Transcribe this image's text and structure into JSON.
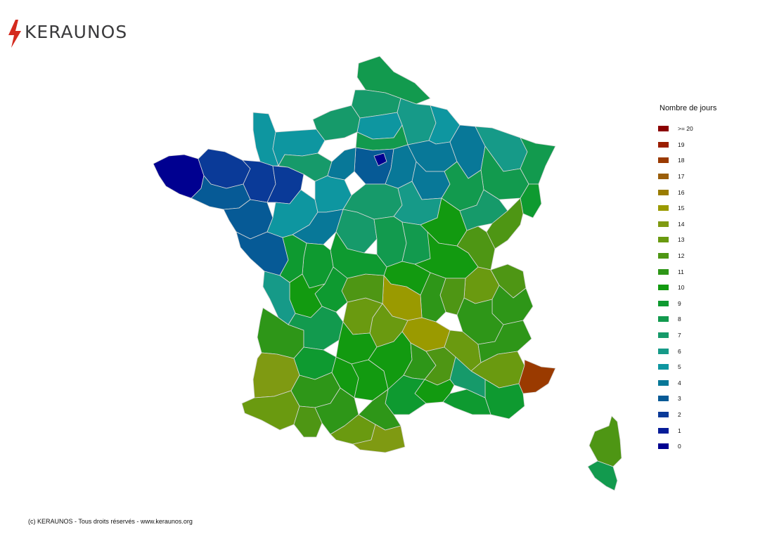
{
  "brand": {
    "name": "KERAUNOS"
  },
  "legend": {
    "title": "Nombre de jours",
    "items": [
      {
        "label": ">= 20",
        "color": "#8b0000"
      },
      {
        "label": "19",
        "color": "#9b1e00"
      },
      {
        "label": "18",
        "color": "#9a3a00"
      },
      {
        "label": "17",
        "color": "#9a5e0a"
      },
      {
        "label": "16",
        "color": "#9a7c00"
      },
      {
        "label": "15",
        "color": "#9a9a00"
      },
      {
        "label": "14",
        "color": "#7f9a12"
      },
      {
        "label": "13",
        "color": "#6a9a10"
      },
      {
        "label": "12",
        "color": "#4e9614"
      },
      {
        "label": "11",
        "color": "#2e9618"
      },
      {
        "label": "10",
        "color": "#129a10"
      },
      {
        "label": "9",
        "color": "#0e9a30"
      },
      {
        "label": "8",
        "color": "#129a4e"
      },
      {
        "label": "7",
        "color": "#169a6a"
      },
      {
        "label": "6",
        "color": "#169a88"
      },
      {
        "label": "5",
        "color": "#0e96a0"
      },
      {
        "label": "4",
        "color": "#087898"
      },
      {
        "label": "3",
        "color": "#065a96"
      },
      {
        "label": "2",
        "color": "#0a3a98"
      },
      {
        "label": "1",
        "color": "#061c98"
      },
      {
        "label": "0",
        "color": "#000090"
      }
    ]
  },
  "map": {
    "regions": [
      {
        "name": "bretagne-ouest",
        "days": 0
      },
      {
        "name": "bretagne-nord",
        "days": 2
      },
      {
        "name": "ille-et-vilaine",
        "days": 2
      },
      {
        "name": "mayenne",
        "days": 2
      },
      {
        "name": "morbihan",
        "days": 3
      },
      {
        "name": "loire-atlantique",
        "days": 3
      },
      {
        "name": "vendee",
        "days": 3
      },
      {
        "name": "sarthe",
        "days": 5
      },
      {
        "name": "manche",
        "days": 5
      },
      {
        "name": "calvados",
        "days": 5
      },
      {
        "name": "orne",
        "days": 7
      },
      {
        "name": "seine-maritime",
        "days": 7
      },
      {
        "name": "nord",
        "days": 8
      },
      {
        "name": "pas-de-calais",
        "days": 7
      },
      {
        "name": "somme",
        "days": 5
      },
      {
        "name": "aisne",
        "days": 6
      },
      {
        "name": "oise",
        "days": 8
      },
      {
        "name": "paris",
        "days": 0
      },
      {
        "name": "ile-de-france",
        "days": 3
      },
      {
        "name": "yvelines",
        "days": 4
      },
      {
        "name": "seine-et-marne",
        "days": 4
      },
      {
        "name": "eure-et-loir",
        "days": 5
      },
      {
        "name": "loiret",
        "days": 7
      },
      {
        "name": "ardennes",
        "days": 5
      },
      {
        "name": "marne",
        "days": 4
      },
      {
        "name": "aube",
        "days": 4
      },
      {
        "name": "meuse",
        "days": 4
      },
      {
        "name": "moselle",
        "days": 6
      },
      {
        "name": "bas-rhin",
        "days": 8
      },
      {
        "name": "haut-rhin",
        "days": 9
      },
      {
        "name": "vosges",
        "days": 8
      },
      {
        "name": "haute-marne",
        "days": 8
      },
      {
        "name": "yonne",
        "days": 6
      },
      {
        "name": "cote-d-or",
        "days": 10
      },
      {
        "name": "haute-saone",
        "days": 7
      },
      {
        "name": "doubs",
        "days": 12
      },
      {
        "name": "jura",
        "days": 12
      },
      {
        "name": "indre-et-loire",
        "days": 4
      },
      {
        "name": "loir-et-cher",
        "days": 7
      },
      {
        "name": "cher",
        "days": 8
      },
      {
        "name": "nievre",
        "days": 8
      },
      {
        "name": "saone-et-loire",
        "days": 10
      },
      {
        "name": "ain",
        "days": 13
      },
      {
        "name": "haute-savoie",
        "days": 12
      },
      {
        "name": "savoie",
        "days": 11
      },
      {
        "name": "isere",
        "days": 11
      },
      {
        "name": "rhone",
        "days": 12
      },
      {
        "name": "loire",
        "days": 11
      },
      {
        "name": "allier",
        "days": 10
      },
      {
        "name": "puy-de-dome",
        "days": 15
      },
      {
        "name": "haute-loire",
        "days": 15
      },
      {
        "name": "cantal",
        "days": 13
      },
      {
        "name": "correze",
        "days": 13
      },
      {
        "name": "creuse",
        "days": 12
      },
      {
        "name": "indre",
        "days": 9
      },
      {
        "name": "vienne",
        "days": 9
      },
      {
        "name": "deux-sevres",
        "days": 9
      },
      {
        "name": "haute-vienne",
        "days": 9
      },
      {
        "name": "charente",
        "days": 10
      },
      {
        "name": "charente-maritime",
        "days": 6
      },
      {
        "name": "gironde",
        "days": 11
      },
      {
        "name": "dordogne",
        "days": 8
      },
      {
        "name": "lot",
        "days": 10
      },
      {
        "name": "lot-et-garonne",
        "days": 9
      },
      {
        "name": "landes",
        "days": 14
      },
      {
        "name": "pyrenees-atlantiques",
        "days": 13
      },
      {
        "name": "gers",
        "days": 11
      },
      {
        "name": "hautes-pyrenees",
        "days": 12
      },
      {
        "name": "haute-garonne",
        "days": 11
      },
      {
        "name": "ariege",
        "days": 13
      },
      {
        "name": "tarn-et-garonne",
        "days": 10
      },
      {
        "name": "tarn",
        "days": 10
      },
      {
        "name": "aveyron",
        "days": 10
      },
      {
        "name": "lozere",
        "days": 11
      },
      {
        "name": "ardeche",
        "days": 12
      },
      {
        "name": "drome",
        "days": 13
      },
      {
        "name": "hautes-alpes",
        "days": 11
      },
      {
        "name": "alpes-de-haute-provence",
        "days": 13
      },
      {
        "name": "alpes-maritimes",
        "days": 18
      },
      {
        "name": "var",
        "days": 9
      },
      {
        "name": "bouches-du-rhone",
        "days": 9
      },
      {
        "name": "vaucluse",
        "days": 7
      },
      {
        "name": "gard",
        "days": 10
      },
      {
        "name": "herault",
        "days": 9
      },
      {
        "name": "aude",
        "days": 11
      },
      {
        "name": "pyrenees-orientales",
        "days": 14
      },
      {
        "name": "haute-corse",
        "days": 12
      },
      {
        "name": "corse-du-sud",
        "days": 8
      }
    ]
  },
  "footer": {
    "copyright": "(c) KERAUNOS - Tous droits réservés - www.keraunos.org"
  }
}
